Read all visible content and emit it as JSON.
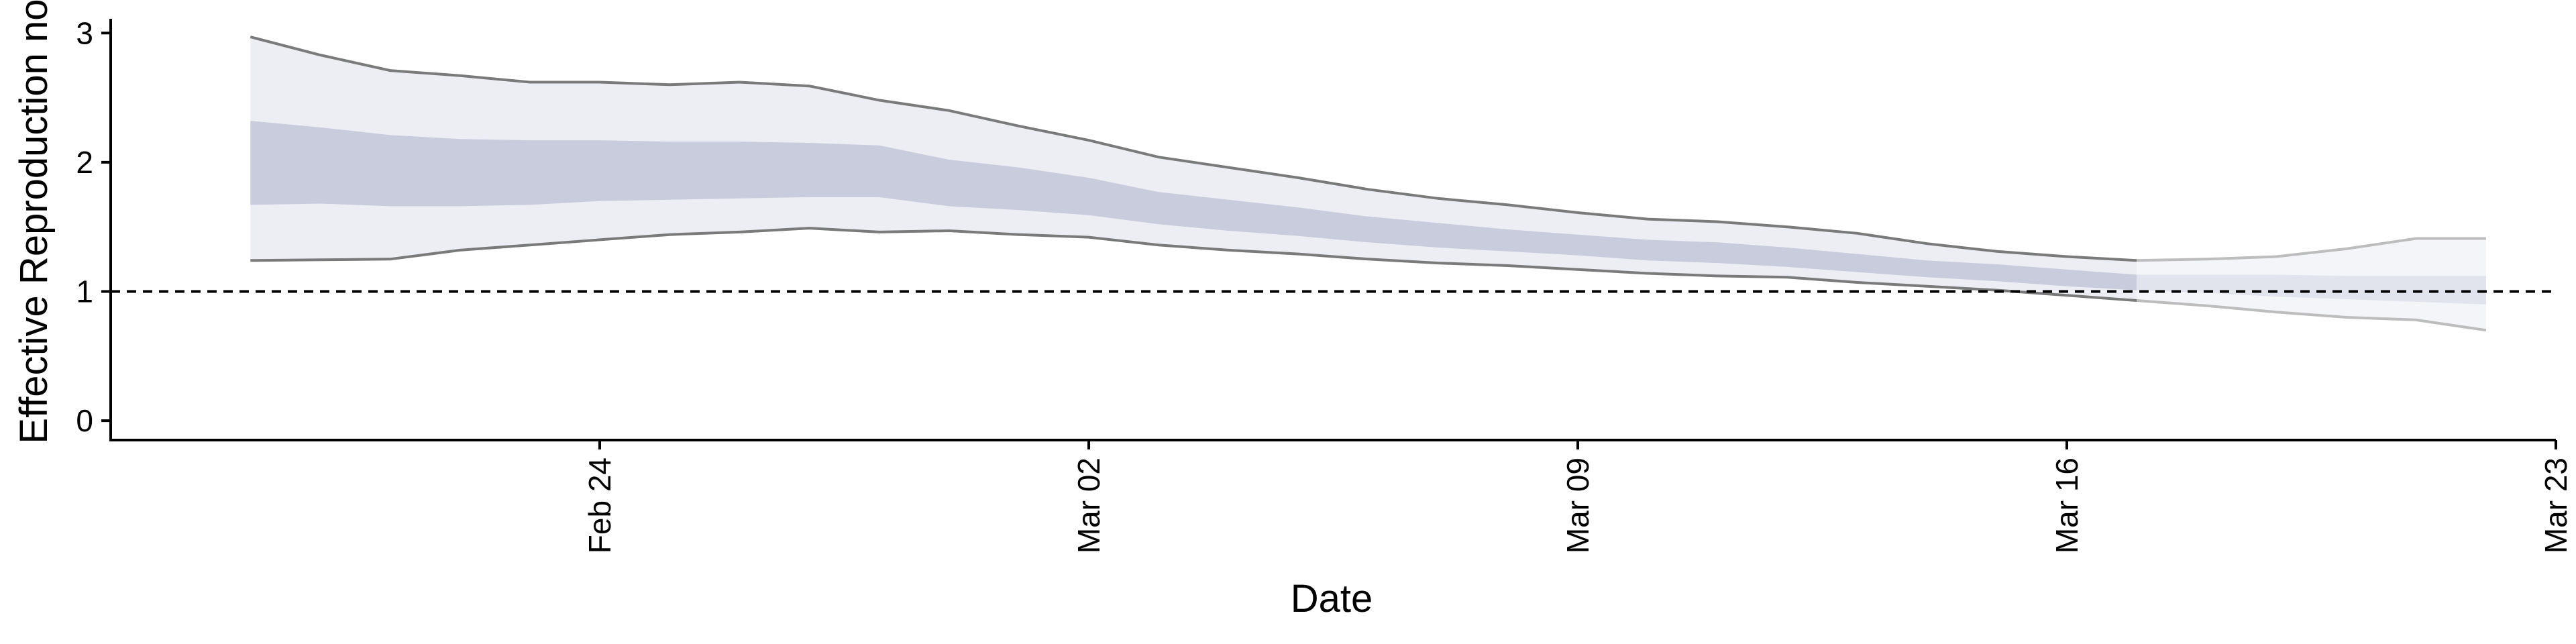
{
  "chart_data": {
    "type": "area",
    "xlabel": "Date",
    "ylabel": "Effective Reproduction no",
    "ylim": [
      -0.15,
      3.1
    ],
    "xlim": [
      "2020-02-17",
      "2020-03-23"
    ],
    "x_ticks": [
      "2020-02-24",
      "2020-03-02",
      "2020-03-09",
      "2020-03-16",
      "2020-03-23"
    ],
    "x_tick_labels": [
      "Feb 24",
      "Mar 02",
      "Mar 09",
      "Mar 16",
      "Mar 23"
    ],
    "y_ticks": [
      0,
      1,
      2,
      3
    ],
    "reference_line": {
      "y": 1,
      "style": "dashed"
    },
    "grid": false,
    "legend": "none",
    "x": [
      "2020-02-19",
      "2020-02-20",
      "2020-02-21",
      "2020-02-22",
      "2020-02-23",
      "2020-02-24",
      "2020-02-25",
      "2020-02-26",
      "2020-02-27",
      "2020-02-28",
      "2020-02-29",
      "2020-03-01",
      "2020-03-02",
      "2020-03-03",
      "2020-03-04",
      "2020-03-05",
      "2020-03-06",
      "2020-03-07",
      "2020-03-08",
      "2020-03-09",
      "2020-03-10",
      "2020-03-11",
      "2020-03-12",
      "2020-03-13",
      "2020-03-14",
      "2020-03-15",
      "2020-03-16",
      "2020-03-17",
      "2020-03-18",
      "2020-03-19",
      "2020-03-20",
      "2020-03-21",
      "2020-03-22"
    ],
    "series": [
      {
        "values_lower_95": [
          1.24,
          1.245,
          1.25,
          1.32,
          1.36,
          1.4,
          1.44,
          1.46,
          1.49,
          1.46,
          1.47,
          1.44,
          1.42,
          1.36,
          1.32,
          1.29,
          1.25,
          1.22,
          1.2,
          1.17,
          1.14,
          1.12,
          1.11,
          1.07,
          1.04,
          1.01,
          0.97,
          0.93,
          0.89,
          0.84,
          0.8,
          0.78,
          0.7
        ],
        "values_upper_95": [
          2.97,
          2.83,
          2.71,
          2.67,
          2.62,
          2.62,
          2.6,
          2.62,
          2.59,
          2.48,
          2.4,
          2.28,
          2.17,
          2.04,
          1.96,
          1.88,
          1.79,
          1.72,
          1.67,
          1.61,
          1.56,
          1.54,
          1.5,
          1.45,
          1.37,
          1.31,
          1.27,
          1.24,
          1.25,
          1.27,
          1.33,
          1.41,
          1.41
        ],
        "values_lower_50": [
          1.67,
          1.68,
          1.66,
          1.66,
          1.67,
          1.7,
          1.71,
          1.72,
          1.73,
          1.73,
          1.66,
          1.63,
          1.59,
          1.52,
          1.47,
          1.43,
          1.38,
          1.34,
          1.31,
          1.28,
          1.24,
          1.22,
          1.19,
          1.15,
          1.11,
          1.08,
          1.04,
          1.01,
          0.99,
          0.96,
          0.94,
          0.92,
          0.9
        ],
        "values_upper_50": [
          2.32,
          2.27,
          2.21,
          2.18,
          2.17,
          2.17,
          2.16,
          2.16,
          2.15,
          2.13,
          2.02,
          1.96,
          1.88,
          1.77,
          1.71,
          1.65,
          1.58,
          1.53,
          1.48,
          1.44,
          1.4,
          1.38,
          1.34,
          1.29,
          1.24,
          1.21,
          1.17,
          1.13,
          1.13,
          1.13,
          1.12,
          1.12,
          1.12
        ],
        "nowcast_from": "2020-03-17"
      }
    ],
    "colors": {
      "band_95": "#eceef4",
      "band_50": "#c8ccdd",
      "band_95_nowcast": "#f4f5f8",
      "band_50_nowcast": "#e1e4ed",
      "bound_line": "#7a7a7a",
      "bound_line_nowcast": "#bdbdbd",
      "axis": "#000000"
    }
  }
}
